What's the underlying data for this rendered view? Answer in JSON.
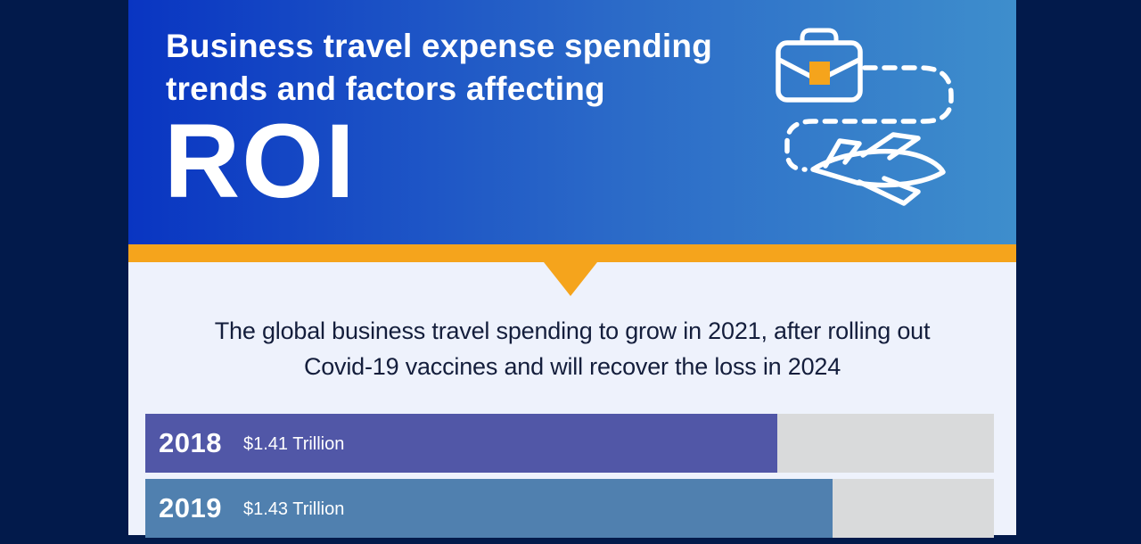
{
  "page": {
    "bg_color": "#021A4B",
    "panel_bg": "#EEF2FC",
    "accent_orange": "#F5A41C",
    "header_gradient_left": "#0935C2",
    "header_gradient_right": "#3E8ECC"
  },
  "header": {
    "title_line1": "Business travel expense spending",
    "title_line2": "trends and factors affecting",
    "highlight": "ROI",
    "icon": "briefcase-with-travel-route-and-airplane"
  },
  "intro": {
    "line1": "The global business travel spending to grow in 2021, after rolling out",
    "line2": "Covid-19 vaccines and will recover the loss in 2024"
  },
  "chart_data": {
    "type": "bar",
    "orientation": "horizontal",
    "unit": "USD Trillion",
    "categories": [
      "2018",
      "2019"
    ],
    "values": [
      1.41,
      1.43
    ],
    "track_color": "#D9DADB",
    "bars": [
      {
        "year": "2018",
        "label": "$1.41 Trillion",
        "value": 1.41,
        "fill_percent": 74.5,
        "color": "#5157A7"
      },
      {
        "year": "2019",
        "label": "$1.43 Trillion",
        "value": 1.43,
        "fill_percent": 81.0,
        "color": "#5080AF"
      }
    ]
  }
}
